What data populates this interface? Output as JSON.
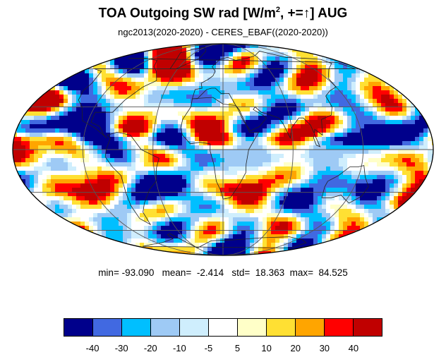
{
  "title": {
    "prefix": "TOA Outgoing SW rad [W/m",
    "superscript": "2",
    "suffix": ", +=↑] AUG"
  },
  "subtitle": "ngc2013(2020-2020) - CERES_EBAF((2020-2020))",
  "map": {
    "projection": "mollweide",
    "coastlines": true,
    "graticule": true
  },
  "stats": {
    "min_label": "min=",
    "min": "-93.090",
    "mean_label": "mean=",
    "mean": "-2.414",
    "std_label": "std=",
    "std": "18.363",
    "max_label": "max=",
    "max": "84.525"
  },
  "colorbar": {
    "colors": [
      "#00008b",
      "#4169e1",
      "#00bfff",
      "#9ecaf5",
      "#cfeefd",
      "#ffffff",
      "#ffffc8",
      "#ffe033",
      "#ffa500",
      "#ff0000",
      "#c00000"
    ],
    "ticks": [
      "-40",
      "-30",
      "-20",
      "-10",
      "-5",
      "5",
      "10",
      "20",
      "30",
      "40"
    ]
  }
}
